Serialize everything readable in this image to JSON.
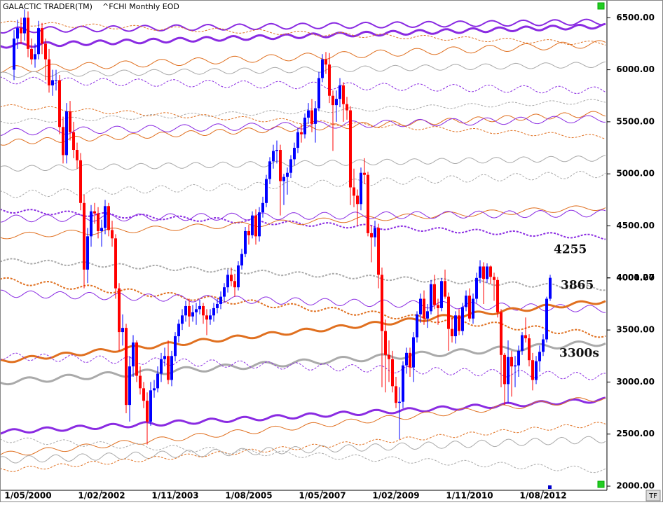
{
  "chart_data": {
    "type": "candlestick",
    "title": "GALACTIC TRADER(TM)",
    "subtitle": "^FCHI Monthly EOD",
    "up_color": "#0000ff",
    "down_color": "#ff0000",
    "ylim": [
      1960,
      6670
    ],
    "yticks": [
      {
        "value": 2000,
        "label": "2000.00"
      },
      {
        "value": 2500,
        "label": "2500.00"
      },
      {
        "value": 3000,
        "label": "3000.00"
      },
      {
        "value": 3500,
        "label": "3500.00"
      },
      {
        "value": 4000,
        "label": "4000.00"
      },
      {
        "value": 4500,
        "label": "4500.00"
      },
      {
        "value": 5000,
        "label": "5000.00"
      },
      {
        "value": 5500,
        "label": "5500.00"
      },
      {
        "value": 6000,
        "label": "6000.00"
      },
      {
        "value": 6500,
        "label": "6500.00"
      }
    ],
    "x": [
      null,
      null,
      null,
      null,
      "1/05/2000",
      null,
      null,
      null,
      null,
      null,
      null,
      null,
      null,
      null,
      null,
      null,
      null,
      null,
      null,
      null,
      null,
      null,
      null,
      null,
      null,
      "1/02/2002",
      null,
      null,
      null,
      null,
      null,
      null,
      null,
      null,
      null,
      null,
      null,
      null,
      null,
      null,
      null,
      null,
      null,
      null,
      null,
      null,
      "1/11/2003",
      null,
      null,
      null,
      null,
      null,
      null,
      null,
      null,
      null,
      null,
      null,
      null,
      null,
      null,
      null,
      null,
      null,
      null,
      null,
      null,
      "1/08/2005",
      null,
      null,
      null,
      null,
      null,
      null,
      null,
      null,
      null,
      null,
      null,
      null,
      null,
      null,
      null,
      null,
      null,
      null,
      null,
      null,
      "1/05/2007",
      null,
      null,
      null,
      null,
      null,
      null,
      null,
      null,
      null,
      null,
      null,
      null,
      null,
      null,
      null,
      null,
      null,
      null,
      null,
      null,
      "1/02/2009",
      null,
      null,
      null,
      null,
      null,
      null,
      null,
      null,
      null,
      null,
      null,
      null,
      null,
      null,
      null,
      null,
      null,
      null,
      null,
      null,
      "1/11/2010",
      null,
      null,
      null,
      null,
      null,
      null,
      null,
      null,
      null,
      null,
      null,
      null,
      null,
      null,
      null,
      null,
      null,
      null,
      null,
      null,
      "1/08/2012",
      null,
      null
    ],
    "ohlc": [
      [
        6000,
        6380,
        5900,
        6300
      ],
      [
        6300,
        6480,
        6200,
        6400
      ],
      [
        6400,
        6500,
        6250,
        6350
      ],
      [
        6350,
        6580,
        6280,
        6500
      ],
      [
        6500,
        6560,
        6120,
        6200
      ],
      [
        6200,
        6300,
        6050,
        6100
      ],
      [
        6100,
        6250,
        6020,
        6150
      ],
      [
        6150,
        6470,
        6100,
        6400
      ],
      [
        6400,
        6450,
        6150,
        6250
      ],
      [
        6250,
        6300,
        5900,
        6100
      ],
      [
        6100,
        6200,
        5780,
        5850
      ],
      [
        5850,
        6000,
        5750,
        5900
      ],
      [
        5900,
        6000,
        5800,
        5900
      ],
      [
        5900,
        5950,
        5380,
        5450
      ],
      [
        5450,
        5550,
        5100,
        5180
      ],
      [
        5180,
        5680,
        5100,
        5600
      ],
      [
        5600,
        5700,
        5320,
        5400
      ],
      [
        5400,
        5500,
        5150,
        5230
      ],
      [
        5230,
        5300,
        5050,
        5130
      ],
      [
        5130,
        5200,
        4650,
        4720
      ],
      [
        4720,
        4800,
        3900,
        4080
      ],
      [
        4080,
        4480,
        3950,
        4400
      ],
      [
        4400,
        4700,
        4300,
        4640
      ],
      [
        4640,
        4720,
        4520,
        4620
      ],
      [
        4620,
        4680,
        4380,
        4450
      ],
      [
        4450,
        4560,
        4300,
        4480
      ],
      [
        4480,
        4750,
        4420,
        4690
      ],
      [
        4690,
        4720,
        4400,
        4460
      ],
      [
        4460,
        4550,
        4300,
        4380
      ],
      [
        4380,
        4420,
        3800,
        3900
      ],
      [
        3900,
        3950,
        3300,
        3480
      ],
      [
        3480,
        3650,
        3350,
        3520
      ],
      [
        3520,
        3560,
        2700,
        2780
      ],
      [
        2780,
        3250,
        2620,
        3150
      ],
      [
        3150,
        3450,
        3050,
        3380
      ],
      [
        3380,
        3400,
        3000,
        3060
      ],
      [
        3060,
        3150,
        2880,
        2940
      ],
      [
        2940,
        3000,
        2750,
        2820
      ],
      [
        2820,
        2900,
        2400,
        2620
      ],
      [
        2620,
        3000,
        2580,
        2920
      ],
      [
        2920,
        3020,
        2850,
        2940
      ],
      [
        2940,
        3150,
        2900,
        3080
      ],
      [
        3080,
        3280,
        3000,
        3220
      ],
      [
        3220,
        3330,
        3150,
        3250
      ],
      [
        3250,
        3400,
        2980,
        3020
      ],
      [
        3020,
        3300,
        2960,
        3250
      ],
      [
        3250,
        3480,
        3200,
        3440
      ],
      [
        3440,
        3600,
        3380,
        3560
      ],
      [
        3560,
        3700,
        3500,
        3640
      ],
      [
        3640,
        3780,
        3580,
        3730
      ],
      [
        3730,
        3800,
        3530,
        3630
      ],
      [
        3630,
        3740,
        3580,
        3670
      ],
      [
        3670,
        3760,
        3550,
        3700
      ],
      [
        3700,
        3790,
        3650,
        3730
      ],
      [
        3730,
        3760,
        3560,
        3640
      ],
      [
        3640,
        3700,
        3450,
        3600
      ],
      [
        3600,
        3700,
        3550,
        3640
      ],
      [
        3640,
        3760,
        3580,
        3710
      ],
      [
        3710,
        3800,
        3660,
        3750
      ],
      [
        3750,
        3870,
        3700,
        3820
      ],
      [
        3820,
        3950,
        3770,
        3910
      ],
      [
        3910,
        4080,
        3860,
        4030
      ],
      [
        4030,
        4100,
        3920,
        3970
      ],
      [
        3970,
        4040,
        3820,
        3910
      ],
      [
        3910,
        4160,
        3880,
        4120
      ],
      [
        4120,
        4280,
        4080,
        4230
      ],
      [
        4230,
        4490,
        4200,
        4450
      ],
      [
        4450,
        4510,
        4320,
        4410
      ],
      [
        4410,
        4640,
        4380,
        4600
      ],
      [
        4600,
        4660,
        4320,
        4400
      ],
      [
        4400,
        4680,
        4350,
        4630
      ],
      [
        4630,
        4780,
        4580,
        4720
      ],
      [
        4720,
        4990,
        4680,
        4950
      ],
      [
        4950,
        5160,
        4900,
        5120
      ],
      [
        5120,
        5280,
        5050,
        5220
      ],
      [
        5220,
        5320,
        5100,
        5230
      ],
      [
        5230,
        5280,
        4600,
        4930
      ],
      [
        4930,
        5000,
        4700,
        4970
      ],
      [
        4970,
        5060,
        4800,
        5010
      ],
      [
        5010,
        5180,
        4960,
        5140
      ],
      [
        5140,
        5300,
        5080,
        5250
      ],
      [
        5250,
        5440,
        5200,
        5400
      ],
      [
        5400,
        5480,
        5300,
        5380
      ],
      [
        5380,
        5580,
        5340,
        5540
      ],
      [
        5540,
        5680,
        5480,
        5610
      ],
      [
        5610,
        5720,
        5400,
        5480
      ],
      [
        5480,
        5700,
        5300,
        5630
      ],
      [
        5630,
        5980,
        5600,
        5920
      ],
      [
        5920,
        6150,
        5880,
        6100
      ],
      [
        6100,
        6170,
        5960,
        6050
      ],
      [
        6050,
        6160,
        5680,
        5750
      ],
      [
        5750,
        5800,
        5220,
        5660
      ],
      [
        5660,
        5800,
        5500,
        5720
      ],
      [
        5720,
        5920,
        5640,
        5850
      ],
      [
        5850,
        5880,
        5500,
        5670
      ],
      [
        5670,
        5740,
        5520,
        5610
      ],
      [
        5610,
        5650,
        4700,
        4870
      ],
      [
        4870,
        5050,
        4680,
        4790
      ],
      [
        4790,
        4850,
        4500,
        4710
      ],
      [
        4710,
        5060,
        4650,
        5010
      ],
      [
        5010,
        5150,
        4900,
        4990
      ],
      [
        4990,
        5020,
        4400,
        4430
      ],
      [
        4430,
        4500,
        4150,
        4390
      ],
      [
        4390,
        4550,
        4300,
        4480
      ],
      [
        4480,
        4520,
        3900,
        4030
      ],
      [
        4030,
        4100,
        2950,
        3490
      ],
      [
        3490,
        3600,
        2900,
        3260
      ],
      [
        3260,
        3400,
        3000,
        3220
      ],
      [
        3220,
        3300,
        2900,
        2960
      ],
      [
        2960,
        3050,
        2750,
        2800
      ],
      [
        2800,
        2950,
        2450,
        2810
      ],
      [
        2810,
        3200,
        2750,
        3160
      ],
      [
        3160,
        3330,
        3080,
        3280
      ],
      [
        3280,
        3330,
        3050,
        3140
      ],
      [
        3140,
        3480,
        3000,
        3430
      ],
      [
        3430,
        3680,
        3380,
        3650
      ],
      [
        3650,
        3850,
        3570,
        3800
      ],
      [
        3800,
        3880,
        3550,
        3610
      ],
      [
        3610,
        3750,
        3520,
        3680
      ],
      [
        3680,
        3980,
        3650,
        3940
      ],
      [
        3940,
        4030,
        3700,
        3740
      ],
      [
        3740,
        3800,
        3550,
        3710
      ],
      [
        3710,
        4000,
        3680,
        3970
      ],
      [
        3970,
        4080,
        3800,
        3820
      ],
      [
        3820,
        3860,
        3300,
        3510
      ],
      [
        3510,
        3620,
        3380,
        3440
      ],
      [
        3440,
        3680,
        3370,
        3640
      ],
      [
        3640,
        3700,
        3450,
        3490
      ],
      [
        3490,
        3760,
        3450,
        3720
      ],
      [
        3720,
        3880,
        3680,
        3830
      ],
      [
        3830,
        3900,
        3580,
        3610
      ],
      [
        3610,
        3850,
        3560,
        3800
      ],
      [
        3800,
        4050,
        3760,
        4000
      ],
      [
        4000,
        4170,
        3950,
        4110
      ],
      [
        4110,
        4150,
        3750,
        3990
      ],
      [
        3990,
        4140,
        3950,
        4110
      ],
      [
        4110,
        4120,
        3940,
        4010
      ],
      [
        4010,
        4050,
        3780,
        3980
      ],
      [
        3980,
        4010,
        3620,
        3670
      ],
      [
        3670,
        3700,
        2950,
        3260
      ],
      [
        3260,
        3280,
        2780,
        2980
      ],
      [
        2980,
        3400,
        2800,
        3240
      ],
      [
        3240,
        3300,
        2860,
        3150
      ],
      [
        3150,
        3250,
        2950,
        3160
      ],
      [
        3160,
        3350,
        3050,
        3300
      ],
      [
        3300,
        3480,
        3260,
        3450
      ],
      [
        3450,
        3620,
        3380,
        3420
      ],
      [
        3420,
        3460,
        3150,
        3210
      ],
      [
        3210,
        3280,
        2920,
        3020
      ],
      [
        3020,
        3250,
        2980,
        3200
      ],
      [
        3200,
        3350,
        3100,
        3290
      ],
      [
        3290,
        3460,
        3250,
        3410
      ],
      [
        3410,
        3820,
        3380,
        3800
      ],
      [
        3800,
        4030,
        3780,
        4001.27
      ]
    ],
    "overlays": [
      {
        "color": "#8a2be2",
        "width": 3,
        "dashed": false,
        "start": 6230,
        "end": 6420
      },
      {
        "color": "#8a2be2",
        "width": 2,
        "dashed": false,
        "start": 6380,
        "end": 6460
      },
      {
        "color": "#e07020",
        "width": 1,
        "dashed": false,
        "start": 6000,
        "end": 6250
      },
      {
        "color": "#e07020",
        "width": 1,
        "dashed": true,
        "start": 6450,
        "end": 6250
      },
      {
        "color": "#aaaaaa",
        "width": 1,
        "dashed": false,
        "start": 5950,
        "end": 6050
      },
      {
        "color": "#8a2be2",
        "width": 1,
        "dashed": true,
        "start": 5900,
        "end": 5800
      },
      {
        "color": "#aaaaaa",
        "width": 1,
        "dashed": true,
        "start": 5500,
        "end": 5700
      },
      {
        "color": "#e07020",
        "width": 1,
        "dashed": false,
        "start": 5300,
        "end": 5580
      },
      {
        "color": "#8a2be2",
        "width": 1,
        "dashed": false,
        "start": 5400,
        "end": 5530
      },
      {
        "color": "#e07020",
        "width": 1,
        "dashed": true,
        "start": 5650,
        "end": 5350
      },
      {
        "color": "#aaaaaa",
        "width": 1,
        "dashed": false,
        "start": 5050,
        "end": 5150
      },
      {
        "color": "#aaaaaa",
        "width": 1,
        "dashed": true,
        "start": 4800,
        "end": 5000
      },
      {
        "color": "#8a2be2",
        "width": 2,
        "dashed": true,
        "start": 4650,
        "end": 4390
      },
      {
        "color": "#e07020",
        "width": 1,
        "dashed": false,
        "start": 4400,
        "end": 4680
      },
      {
        "color": "#8a2be2",
        "width": 1,
        "dashed": false,
        "start": 4570,
        "end": 4620
      },
      {
        "color": "#aaaaaa",
        "width": 2,
        "dashed": true,
        "start": 4170,
        "end": 3900
      },
      {
        "color": "#e07020",
        "width": 2,
        "dashed": true,
        "start": 3980,
        "end": 3450
      },
      {
        "color": "#8a2be2",
        "width": 1,
        "dashed": false,
        "start": 3850,
        "end": 3700
      },
      {
        "color": "#e07020",
        "width": 3,
        "dashed": false,
        "start": 3200,
        "end": 3780
      },
      {
        "color": "#aaaaaa",
        "width": 3,
        "dashed": false,
        "start": 3000,
        "end": 3380
      },
      {
        "color": "#8a2be2",
        "width": 1,
        "dashed": true,
        "start": 3250,
        "end": 3050
      },
      {
        "color": "#8a2be2",
        "width": 3,
        "dashed": false,
        "start": 2520,
        "end": 2830
      },
      {
        "color": "#e07020",
        "width": 1,
        "dashed": false,
        "start": 2300,
        "end": 2850
      },
      {
        "color": "#aaaaaa",
        "width": 1,
        "dashed": false,
        "start": 2250,
        "end": 2450
      },
      {
        "color": "#e07020",
        "width": 1,
        "dashed": true,
        "start": 2150,
        "end": 2600
      },
      {
        "color": "#aaaaaa",
        "width": 1,
        "dashed": true,
        "start": 2450,
        "end": 2150
      }
    ],
    "annotations": [
      "4255",
      "3865",
      "3300s"
    ],
    "button": "TF"
  }
}
